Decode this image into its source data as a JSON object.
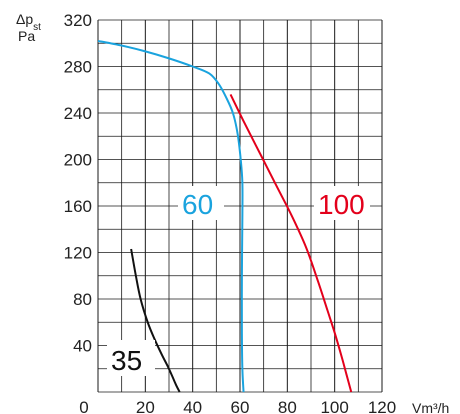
{
  "chart_data": {
    "type": "line",
    "y_unit_symbol": "Δp",
    "y_unit_sub": "st",
    "y_unit": "Pa",
    "x_unit": "V",
    "x_unit_suffix": "m³/h",
    "xlim": [
      0,
      120
    ],
    "ylim": [
      0,
      320
    ],
    "x_ticks": [
      "0",
      "20",
      "40",
      "60",
      "80",
      "100",
      "120"
    ],
    "x_tick_values": [
      0,
      20,
      40,
      60,
      80,
      100,
      120
    ],
    "y_ticks": [
      "0",
      "40",
      "80",
      "120",
      "160",
      "200",
      "240",
      "280",
      "320"
    ],
    "y_tick_values": [
      0,
      40,
      80,
      120,
      160,
      200,
      240,
      280,
      320
    ],
    "grid": true,
    "series": [
      {
        "name": "35",
        "color": "#111111",
        "x": [
          14,
          16,
          18,
          21,
          24,
          27,
          29.5,
          31.5,
          33,
          34.5
        ],
        "y": [
          123,
          100,
          80,
          60,
          45,
          32,
          22,
          13,
          6,
          0
        ]
      },
      {
        "name": "60",
        "color": "#1aa3de",
        "x": [
          0,
          10,
          20,
          30,
          40,
          47,
          51,
          54,
          57,
          59,
          60.3,
          61,
          61,
          60.8,
          60.8,
          61,
          61.5
        ],
        "y": [
          302,
          298,
          293,
          287,
          280,
          274,
          265,
          254,
          240,
          222,
          200,
          180,
          150,
          100,
          50,
          20,
          0
        ]
      },
      {
        "name": "100",
        "color": "#e3001b",
        "x": [
          56,
          62,
          69,
          76,
          82,
          88,
          93,
          97,
          100,
          103,
          105,
          107
        ],
        "y": [
          256,
          231,
          203,
          175,
          151,
          124,
          95,
          70,
          51,
          30,
          15,
          0
        ]
      }
    ]
  }
}
